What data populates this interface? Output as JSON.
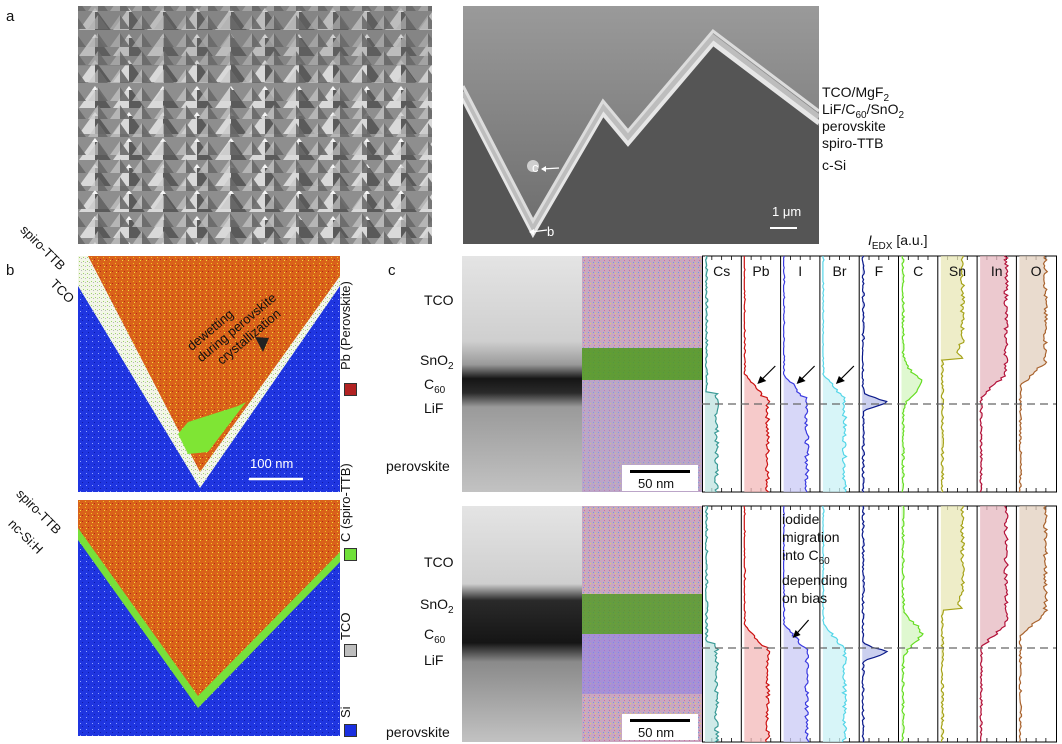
{
  "panel_labels": {
    "a": "a",
    "b": "b",
    "c": "c"
  },
  "panel_a": {
    "layers": [
      "TCO/MgF",
      "LiF/C",
      "perovskite",
      "spiro-TTB",
      "c-Si"
    ],
    "layer_tco_sub": "2",
    "layer_lif_c_sub": "60",
    "layer_lif_tail": "/SnO",
    "layer_lif_tail_sub": "2",
    "marker_c": "c",
    "marker_b": "b",
    "scale_bar": "1 μm"
  },
  "panel_b": {
    "top_labels": [
      "spiro-TTB",
      "TCO"
    ],
    "bottom_labels": [
      "spiro-TTB",
      "nc-Si:H"
    ],
    "annotation_lines": [
      "dewetting",
      "during perovskite",
      "crystallization"
    ],
    "scale_bar": "100 nm",
    "legend": [
      {
        "label": "Pb (Perovskite)",
        "color": "#b22222"
      },
      {
        "label": "C (spiro-TTB)",
        "color": "#6fe03a"
      },
      {
        "label": "TCO",
        "color": "#bdbdbd"
      },
      {
        "label": "Si",
        "color": "#1a2fe0"
      }
    ]
  },
  "panel_c": {
    "axis_label_main": "I",
    "axis_label_sub": "EDX",
    "axis_label_unit": "[a.u.]",
    "elements": [
      {
        "name": "Cs",
        "color": "#3a9a96",
        "fill": "#bfe3e0"
      },
      {
        "name": "Pb",
        "color": "#cc1111",
        "fill": "#f3b8b8"
      },
      {
        "name": "I",
        "color": "#3a3ae0",
        "fill": "#c9c9f5"
      },
      {
        "name": "Br",
        "color": "#55d6e8",
        "fill": "#c9f1f6"
      },
      {
        "name": "F",
        "color": "#0b1a8a",
        "fill": "#b9c0ea"
      },
      {
        "name": "C",
        "color": "#66dd22",
        "fill": "#d4f6c0"
      },
      {
        "name": "Sn",
        "color": "#a6a31a",
        "fill": "#e8e7b6"
      },
      {
        "name": "In",
        "color": "#b3123a",
        "fill": "#e6b7bf"
      },
      {
        "name": "O",
        "color": "#a9632e",
        "fill": "#e2cfbe"
      }
    ],
    "top_layers": [
      "TCO",
      "SnO",
      "C",
      "LiF",
      "perovskite"
    ],
    "bottom_layers": [
      "TCO",
      "SnO",
      "C",
      "LiF",
      "perovskite"
    ],
    "sub_sno": "2",
    "sub_c": "60",
    "scale_bar": "50 nm",
    "annotation_lines": [
      "iodide",
      "migration",
      "into C",
      "depending",
      "on bias"
    ],
    "annotation_sub": "60"
  }
}
